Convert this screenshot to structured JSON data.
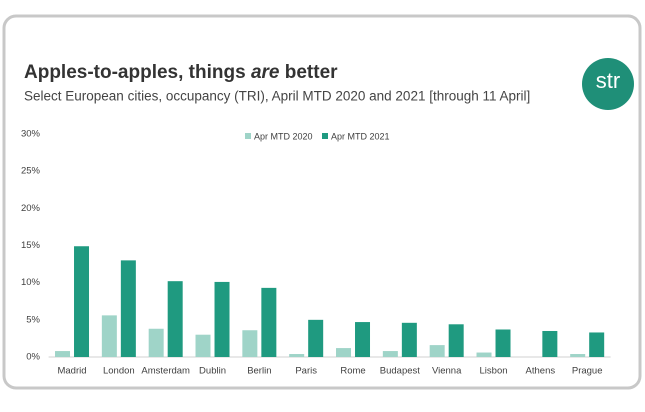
{
  "chart_data": {
    "type": "bar",
    "title": [
      "Apples-to-apples, things ",
      "are",
      " better"
    ],
    "subtitle": "Select European cities, occupancy (TRI), April MTD 2020 and 2021 [through 11 April]",
    "logo": "str",
    "categories": [
      "Madrid",
      "London",
      "Amsterdam",
      "Dublin",
      "Berlin",
      "Paris",
      "Rome",
      "Budapest",
      "Vienna",
      "Lisbon",
      "Athens",
      "Prague"
    ],
    "series": [
      {
        "name": "Apr MTD 2020",
        "color": "#9fd4c8",
        "values": [
          0.8,
          5.6,
          3.8,
          3.0,
          3.6,
          0.4,
          1.2,
          0.8,
          1.6,
          0.6,
          0,
          0.4
        ]
      },
      {
        "name": "Apr MTD 2021",
        "color": "#1f9a80",
        "values": [
          14.9,
          13.0,
          10.2,
          10.1,
          9.3,
          5.0,
          4.7,
          4.6,
          4.4,
          3.7,
          3.5,
          3.3
        ]
      }
    ],
    "ylim": [
      0,
      30
    ],
    "yticks": [
      {
        "value": 0,
        "label": "0%"
      },
      {
        "value": 5,
        "label": "5%"
      },
      {
        "value": 10,
        "label": "10%"
      },
      {
        "value": 15,
        "label": "15%"
      },
      {
        "value": 20,
        "label": "20%"
      },
      {
        "value": 25,
        "label": "25%"
      },
      {
        "value": 30,
        "label": "30%"
      }
    ],
    "legend": "top",
    "grid": false
  }
}
